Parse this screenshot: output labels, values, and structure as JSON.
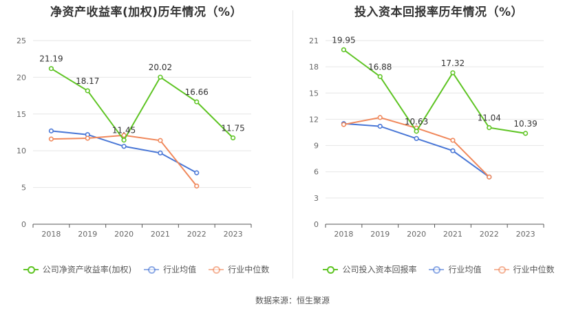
{
  "source_text": "数据来源：恒生聚源",
  "chart_data": [
    {
      "type": "line",
      "title": "净资产收益率(加权)历年情况（%）",
      "categories": [
        "2018",
        "2019",
        "2020",
        "2021",
        "2022",
        "2023"
      ],
      "ylim": [
        0,
        25
      ],
      "yticks": [
        0,
        5,
        10,
        15,
        20,
        25
      ],
      "grid": true,
      "legend_position": "bottom",
      "series": [
        {
          "name": "公司净资产收益率(加权)",
          "color": "#5ec423",
          "values": [
            21.19,
            18.17,
            11.45,
            20.02,
            16.66,
            11.75
          ],
          "labels": [
            "21.19",
            "18.17",
            "11.45",
            "20.02",
            "16.66",
            "11.75"
          ]
        },
        {
          "name": "行业均值",
          "color": "#4876d6",
          "values": [
            12.7,
            12.2,
            10.6,
            9.7,
            7.0,
            null
          ]
        },
        {
          "name": "行业中位数",
          "color": "#f0875a",
          "values": [
            11.6,
            11.7,
            12.1,
            11.4,
            5.2,
            null
          ]
        }
      ]
    },
    {
      "type": "line",
      "title": "投入资本回报率历年情况（%）",
      "categories": [
        "2018",
        "2019",
        "2020",
        "2021",
        "2022",
        "2023"
      ],
      "ylim": [
        0,
        21
      ],
      "yticks": [
        0,
        3,
        6,
        9,
        12,
        15,
        18,
        21
      ],
      "grid": true,
      "legend_position": "bottom",
      "series": [
        {
          "name": "公司投入资本回报率",
          "color": "#5ec423",
          "values": [
            19.95,
            16.88,
            10.63,
            17.32,
            11.04,
            10.39
          ],
          "labels": [
            "19.95",
            "16.88",
            "10.63",
            "17.32",
            "11.04",
            "10.39"
          ]
        },
        {
          "name": "行业均值",
          "color": "#4876d6",
          "values": [
            11.5,
            11.2,
            9.8,
            8.4,
            5.4,
            null
          ]
        },
        {
          "name": "行业中位数",
          "color": "#f0875a",
          "values": [
            11.4,
            12.2,
            11.0,
            9.6,
            5.4,
            null
          ]
        }
      ]
    }
  ]
}
